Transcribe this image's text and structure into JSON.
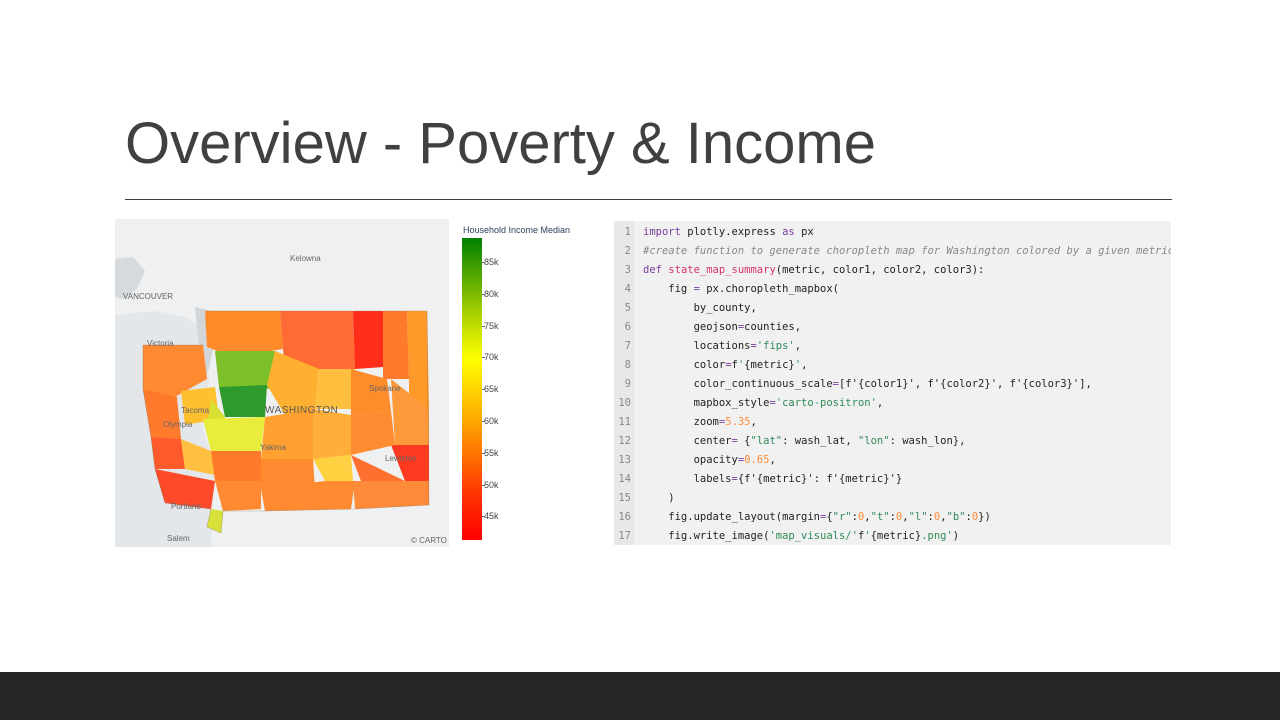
{
  "slide": {
    "title": "Overview - Poverty & Income"
  },
  "map": {
    "labels": {
      "kelowna": "Kelowna",
      "vancouver": "VANCOUVER",
      "victoria": "Victoria",
      "tacoma": "Tacoma",
      "washington": "WASHINGTON",
      "spokane": "Spokane",
      "yakima": "Yakima",
      "olympia": "Olympia",
      "portland": "Portland",
      "salem": "Salem",
      "lewiston": "Lewiston",
      "attribution": "© CARTO"
    },
    "colors": {
      "high": "#008000",
      "mid": "#ffff00",
      "low": "#ff0000"
    }
  },
  "legend": {
    "title": "Household Income Median",
    "ticks": [
      "85k",
      "80k",
      "75k",
      "70k",
      "65k",
      "60k",
      "55k",
      "50k",
      "45k"
    ]
  },
  "code": {
    "lines": [
      {
        "n": "1",
        "tokens": [
          {
            "c": "kw",
            "t": "import"
          },
          {
            "c": "t",
            "t": " plotly.express "
          },
          {
            "c": "kw",
            "t": "as"
          },
          {
            "c": "t",
            "t": " px"
          }
        ]
      },
      {
        "n": "2",
        "tokens": [
          {
            "c": "cm",
            "t": "#create function to generate choropleth map for Washington colored by a given metric"
          }
        ]
      },
      {
        "n": "3",
        "tokens": [
          {
            "c": "kw",
            "t": "def"
          },
          {
            "c": "t",
            "t": " "
          },
          {
            "c": "fn",
            "t": "state_map_summary"
          },
          {
            "c": "t",
            "t": "(metric, color1, color2, color3):"
          }
        ]
      },
      {
        "n": "4",
        "tokens": [
          {
            "c": "t",
            "t": "    fig "
          },
          {
            "c": "op",
            "t": "="
          },
          {
            "c": "t",
            "t": " px.choropleth_mapbox("
          }
        ]
      },
      {
        "n": "5",
        "tokens": [
          {
            "c": "t",
            "t": "        by_county,"
          }
        ]
      },
      {
        "n": "6",
        "tokens": [
          {
            "c": "t",
            "t": "        geojson"
          },
          {
            "c": "op",
            "t": "="
          },
          {
            "c": "t",
            "t": "counties,"
          }
        ]
      },
      {
        "n": "7",
        "tokens": [
          {
            "c": "t",
            "t": "        locations"
          },
          {
            "c": "op",
            "t": "="
          },
          {
            "c": "str",
            "t": "'fips'"
          },
          {
            "c": "t",
            "t": ","
          }
        ]
      },
      {
        "n": "8",
        "tokens": [
          {
            "c": "t",
            "t": "        color"
          },
          {
            "c": "op",
            "t": "="
          },
          {
            "c": "t",
            "t": "f"
          },
          {
            "c": "str",
            "t": "'"
          },
          {
            "c": "t",
            "t": "{metric}"
          },
          {
            "c": "str",
            "t": "'"
          },
          {
            "c": "t",
            "t": ","
          }
        ]
      },
      {
        "n": "9",
        "tokens": [
          {
            "c": "t",
            "t": "        color_continuous_scale"
          },
          {
            "c": "op",
            "t": "="
          },
          {
            "c": "t",
            "t": "[f'{color1}', f'{color2}', f'{color3}'],"
          }
        ]
      },
      {
        "n": "10",
        "tokens": [
          {
            "c": "t",
            "t": "        mapbox_style"
          },
          {
            "c": "op",
            "t": "="
          },
          {
            "c": "str",
            "t": "'carto-positron'"
          },
          {
            "c": "t",
            "t": ","
          }
        ]
      },
      {
        "n": "11",
        "tokens": [
          {
            "c": "t",
            "t": "        zoom"
          },
          {
            "c": "op",
            "t": "="
          },
          {
            "c": "num",
            "t": "5.35"
          },
          {
            "c": "t",
            "t": ","
          }
        ]
      },
      {
        "n": "12",
        "tokens": [
          {
            "c": "t",
            "t": "        center"
          },
          {
            "c": "op",
            "t": "="
          },
          {
            "c": "t",
            "t": " {"
          },
          {
            "c": "str",
            "t": "\"lat\""
          },
          {
            "c": "t",
            "t": ": wash_lat, "
          },
          {
            "c": "str",
            "t": "\"lon\""
          },
          {
            "c": "t",
            "t": ": wash_lon},"
          }
        ]
      },
      {
        "n": "13",
        "tokens": [
          {
            "c": "t",
            "t": "        opacity"
          },
          {
            "c": "op",
            "t": "="
          },
          {
            "c": "num",
            "t": "0.65"
          },
          {
            "c": "t",
            "t": ","
          }
        ]
      },
      {
        "n": "14",
        "tokens": [
          {
            "c": "t",
            "t": "        labels"
          },
          {
            "c": "op",
            "t": "="
          },
          {
            "c": "t",
            "t": "{f'{metric}': f'{metric}'}"
          }
        ]
      },
      {
        "n": "15",
        "tokens": [
          {
            "c": "t",
            "t": "    )"
          }
        ]
      },
      {
        "n": "16",
        "tokens": [
          {
            "c": "t",
            "t": "    fig.update_layout(margin"
          },
          {
            "c": "op",
            "t": "="
          },
          {
            "c": "t",
            "t": "{"
          },
          {
            "c": "str",
            "t": "\"r\""
          },
          {
            "c": "t",
            "t": ":"
          },
          {
            "c": "num",
            "t": "0"
          },
          {
            "c": "t",
            "t": ","
          },
          {
            "c": "str",
            "t": "\"t\""
          },
          {
            "c": "t",
            "t": ":"
          },
          {
            "c": "num",
            "t": "0"
          },
          {
            "c": "t",
            "t": ","
          },
          {
            "c": "str",
            "t": "\"l\""
          },
          {
            "c": "t",
            "t": ":"
          },
          {
            "c": "num",
            "t": "0"
          },
          {
            "c": "t",
            "t": ","
          },
          {
            "c": "str",
            "t": "\"b\""
          },
          {
            "c": "t",
            "t": ":"
          },
          {
            "c": "num",
            "t": "0"
          },
          {
            "c": "t",
            "t": "})"
          }
        ]
      },
      {
        "n": "17",
        "tokens": [
          {
            "c": "t",
            "t": "    fig.write_image("
          },
          {
            "c": "str",
            "t": "'map_visuals/'"
          },
          {
            "c": "t",
            "t": "f"
          },
          {
            "c": "str",
            "t": "'"
          },
          {
            "c": "t",
            "t": "{metric}"
          },
          {
            "c": "str",
            "t": ".png'"
          },
          {
            "c": "t",
            "t": ")"
          }
        ]
      }
    ]
  }
}
